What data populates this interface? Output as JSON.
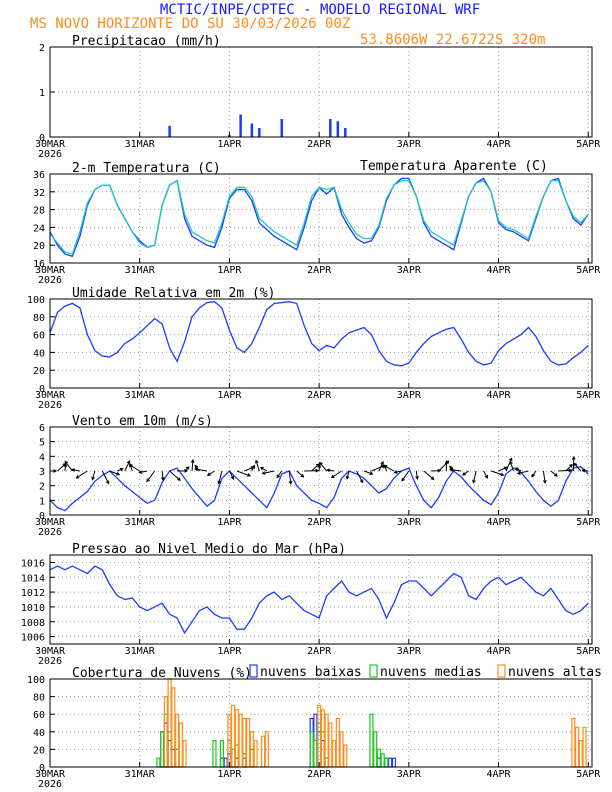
{
  "header": {
    "title": "MCTIC/INPE/CPTEC - MODELO REGIONAL WRF",
    "location": "MS NOVO HORIZONTE DO SU   30/03/2026 00Z",
    "coordinates": "53.8606W 22.6722S 320m"
  },
  "colors": {
    "title": "#1a1aff",
    "accent": "#ff8c1a",
    "line": "#1a3cff",
    "cyan": "#1ec8c8",
    "green": "#1ec81e",
    "orange": "#ff8c1a",
    "grid": "#999999"
  },
  "x_axis": {
    "day_labels": [
      "30MAR",
      "31MAR",
      "1APR",
      "2APR",
      "3APR",
      "4APR",
      "5APR"
    ],
    "year": "2026"
  },
  "chart_data": [
    {
      "type": "bar",
      "title": "Precipitacao (mm/h)",
      "ylim": [
        0,
        2
      ],
      "yticks": [
        0,
        1,
        2
      ],
      "x_unit": "hours since 30MAR 00Z",
      "series": [
        {
          "name": "precipitacao",
          "x": [
            32,
            48,
            51,
            54,
            56,
            62,
            75,
            77,
            79
          ],
          "values": [
            0.25,
            0.05,
            0.5,
            0.3,
            0.2,
            0.4,
            0.4,
            0.35,
            0.2
          ]
        }
      ]
    },
    {
      "type": "line",
      "title": "2-m Temperatura (C)",
      "legend": "Temperatura Aparente (C)",
      "ylim": [
        16,
        36
      ],
      "yticks": [
        16,
        20,
        24,
        28,
        32,
        36
      ],
      "x_unit": "hours since 30MAR 00Z",
      "series": [
        {
          "name": "Temperatura",
          "x": [
            0,
            2,
            4,
            6,
            8,
            10,
            12,
            14,
            16,
            18,
            20,
            22,
            24,
            26,
            28,
            30,
            32,
            34,
            36,
            38,
            40,
            42,
            44,
            46,
            48,
            50,
            52,
            54,
            56,
            58,
            60,
            62,
            64,
            66,
            68,
            70,
            72,
            74,
            76,
            78,
            80,
            82,
            84,
            86,
            88,
            90,
            92,
            94,
            96,
            98,
            100,
            102,
            104,
            106,
            108,
            110,
            112,
            114,
            116,
            118,
            120,
            122,
            124,
            126,
            128,
            130,
            132,
            134,
            136,
            138,
            140,
            142,
            144
          ],
          "values": [
            23,
            20,
            18,
            17.5,
            22,
            29,
            32.5,
            33.5,
            33.5,
            29,
            26,
            23,
            21,
            19.5,
            20,
            29,
            33.5,
            34.5,
            26,
            22,
            21,
            20,
            19.5,
            24,
            30.5,
            32.5,
            32.5,
            30,
            25,
            23.5,
            22,
            21,
            20,
            19,
            24,
            30,
            33,
            31.5,
            33,
            27,
            24,
            21.5,
            20.5,
            21,
            24,
            30,
            33.5,
            35,
            35,
            31,
            25,
            22,
            21,
            20,
            19,
            25,
            31,
            34,
            35,
            32,
            25,
            23.5,
            23,
            22,
            21,
            26,
            31,
            34.5,
            35,
            30,
            26,
            24.5,
            27
          ]
        },
        {
          "name": "Temperatura Aparente",
          "x": [
            0,
            2,
            4,
            6,
            8,
            10,
            12,
            14,
            16,
            18,
            20,
            22,
            24,
            26,
            28,
            30,
            32,
            34,
            36,
            38,
            40,
            42,
            44,
            46,
            48,
            50,
            52,
            54,
            56,
            58,
            60,
            62,
            64,
            66,
            68,
            70,
            72,
            74,
            76,
            78,
            80,
            82,
            84,
            86,
            88,
            90,
            92,
            94,
            96,
            98,
            100,
            102,
            104,
            106,
            108,
            110,
            112,
            114,
            116,
            118,
            120,
            122,
            124,
            126,
            128,
            130,
            132,
            134,
            136,
            138,
            140,
            142,
            144
          ],
          "values": [
            22.5,
            20.5,
            18.5,
            18,
            23,
            29.5,
            32.5,
            33.5,
            33.5,
            29,
            26,
            23,
            20.5,
            19.5,
            20,
            29,
            33.5,
            34.5,
            27,
            23,
            22,
            21,
            20.5,
            25,
            31,
            33,
            33,
            31,
            26,
            24.5,
            23,
            22,
            21,
            20,
            25,
            31,
            33,
            32.5,
            33,
            28,
            25,
            22.5,
            21.5,
            21.5,
            24.5,
            30.5,
            33.5,
            34.5,
            34.5,
            31,
            25.5,
            23,
            22,
            21,
            20,
            25.5,
            31,
            34,
            34.5,
            32,
            25.5,
            24,
            23.5,
            22.5,
            21.5,
            26.5,
            31,
            34.5,
            34.5,
            30,
            26.5,
            25,
            27
          ]
        }
      ]
    },
    {
      "type": "line",
      "title": "Umidade Relativa em 2m (%)",
      "ylim": [
        0,
        100
      ],
      "yticks": [
        0,
        20,
        40,
        60,
        80,
        100
      ],
      "x_unit": "hours since 30MAR 00Z",
      "series": [
        {
          "name": "umidade",
          "x": [
            0,
            2,
            4,
            6,
            8,
            10,
            12,
            14,
            16,
            18,
            20,
            22,
            24,
            26,
            28,
            30,
            32,
            34,
            36,
            38,
            40,
            42,
            44,
            46,
            48,
            50,
            52,
            54,
            56,
            58,
            60,
            62,
            64,
            66,
            68,
            70,
            72,
            74,
            76,
            78,
            80,
            82,
            84,
            86,
            88,
            90,
            92,
            94,
            96,
            98,
            100,
            102,
            104,
            106,
            108,
            110,
            112,
            114,
            116,
            118,
            120,
            122,
            124,
            126,
            128,
            130,
            132,
            134,
            136,
            138,
            140,
            142,
            144
          ],
          "values": [
            62,
            85,
            92,
            95,
            90,
            60,
            42,
            36,
            35,
            40,
            50,
            55,
            62,
            70,
            78,
            72,
            45,
            30,
            52,
            80,
            90,
            96,
            97,
            90,
            65,
            45,
            40,
            50,
            68,
            88,
            95,
            96,
            97,
            95,
            70,
            50,
            42,
            48,
            45,
            55,
            62,
            65,
            68,
            60,
            42,
            30,
            26,
            25,
            28,
            40,
            50,
            58,
            62,
            66,
            68,
            55,
            40,
            30,
            26,
            28,
            42,
            50,
            55,
            60,
            68,
            58,
            42,
            30,
            26,
            27,
            34,
            40,
            48
          ]
        }
      ]
    },
    {
      "type": "line",
      "title": "Vento em 10m (m/s)",
      "ylim": [
        0,
        6
      ],
      "yticks": [
        0,
        1,
        2,
        3,
        4,
        5,
        6
      ],
      "x_unit": "hours since 30MAR 00Z",
      "series": [
        {
          "name": "vento",
          "x": [
            0,
            2,
            4,
            6,
            8,
            10,
            12,
            14,
            16,
            18,
            20,
            22,
            24,
            26,
            28,
            30,
            32,
            34,
            36,
            38,
            40,
            42,
            44,
            46,
            48,
            50,
            52,
            54,
            56,
            58,
            60,
            62,
            64,
            66,
            68,
            70,
            72,
            74,
            76,
            78,
            80,
            82,
            84,
            86,
            88,
            90,
            92,
            94,
            96,
            98,
            100,
            102,
            104,
            106,
            108,
            110,
            112,
            114,
            116,
            118,
            120,
            122,
            124,
            126,
            128,
            130,
            132,
            134,
            136,
            138,
            140,
            142,
            144
          ],
          "values": [
            1,
            0.5,
            0.3,
            0.8,
            1.2,
            1.6,
            2.3,
            2.7,
            3,
            2.5,
            2,
            1.6,
            1.2,
            0.8,
            1,
            2.2,
            3,
            3.2,
            2.5,
            1.8,
            1.2,
            0.6,
            1,
            2.5,
            3,
            2.5,
            2,
            1.5,
            1,
            0.5,
            1.5,
            2.8,
            3,
            2,
            1.5,
            1,
            0.8,
            0.5,
            1.2,
            2.5,
            3,
            2.8,
            2.5,
            2,
            1.5,
            1.8,
            2.5,
            3,
            3.2,
            2,
            1,
            0.5,
            1.2,
            2.3,
            3,
            2.6,
            2,
            1.5,
            1,
            0.7,
            1.5,
            2.8,
            3.2,
            2.9,
            2.3,
            1.6,
            1,
            0.6,
            1,
            2.3,
            3.2,
            3.3,
            2.8
          ]
        }
      ]
    },
    {
      "type": "line",
      "title": "Pressao ao Nivel Medio do Mar (hPa)",
      "ylim": [
        1005,
        1017
      ],
      "yticks": [
        1006,
        1008,
        1010,
        1012,
        1014,
        1016
      ],
      "x_unit": "hours since 30MAR 00Z",
      "series": [
        {
          "name": "pressao",
          "x": [
            0,
            2,
            4,
            6,
            8,
            10,
            12,
            14,
            16,
            18,
            20,
            22,
            24,
            26,
            28,
            30,
            32,
            34,
            36,
            38,
            40,
            42,
            44,
            46,
            48,
            50,
            52,
            54,
            56,
            58,
            60,
            62,
            64,
            66,
            68,
            70,
            72,
            74,
            76,
            78,
            80,
            82,
            84,
            86,
            88,
            90,
            92,
            94,
            96,
            98,
            100,
            102,
            104,
            106,
            108,
            110,
            112,
            114,
            116,
            118,
            120,
            122,
            124,
            126,
            128,
            130,
            132,
            134,
            136,
            138,
            140,
            142,
            144
          ],
          "values": [
            1015,
            1015.5,
            1015,
            1015.5,
            1015,
            1014.5,
            1015.5,
            1015,
            1013,
            1011.5,
            1011,
            1011.2,
            1010,
            1009.5,
            1010,
            1010.5,
            1009,
            1008.5,
            1006.5,
            1008,
            1009.5,
            1010,
            1009,
            1008.5,
            1008.5,
            1007,
            1007,
            1008.5,
            1010.5,
            1011.5,
            1012,
            1011,
            1011.5,
            1010.5,
            1009.5,
            1009,
            1008.5,
            1011.5,
            1012.5,
            1013.5,
            1012,
            1011.5,
            1012,
            1012.5,
            1011,
            1008.5,
            1010.5,
            1013,
            1013.5,
            1013.5,
            1012.5,
            1011.5,
            1012.5,
            1013.5,
            1014.5,
            1014,
            1011.5,
            1011,
            1012.5,
            1013.5,
            1014,
            1013,
            1013.5,
            1014,
            1013,
            1012,
            1011.5,
            1012.5,
            1011,
            1009.5,
            1009,
            1009.5,
            1010.5
          ]
        }
      ]
    },
    {
      "type": "bar",
      "title": "Cobertura de Nuvens (%)",
      "legend": [
        "nuvens baixas",
        "nuvens medias",
        "nuvens altas"
      ],
      "ylim": [
        0,
        100
      ],
      "yticks": [
        0,
        20,
        40,
        60,
        80,
        100
      ],
      "x_unit": "hours since 30MAR 00Z",
      "series": [
        {
          "name": "nuvens baixas",
          "x": [
            30,
            31,
            32,
            33,
            46,
            47,
            48,
            49,
            50,
            52,
            70,
            71,
            72,
            73,
            88,
            90,
            91,
            92,
            144
          ],
          "values": [
            40,
            50,
            30,
            20,
            10,
            10,
            15,
            20,
            10,
            10,
            55,
            60,
            40,
            30,
            10,
            10,
            10,
            10,
            0
          ]
        },
        {
          "name": "nuvens medias",
          "x": [
            29,
            30,
            31,
            32,
            34,
            44,
            46,
            48,
            49,
            50,
            52,
            54,
            70,
            71,
            72,
            73,
            74,
            86,
            87,
            88,
            89,
            90
          ],
          "values": [
            10,
            40,
            60,
            40,
            20,
            30,
            30,
            30,
            20,
            25,
            15,
            20,
            40,
            30,
            50,
            40,
            10,
            60,
            40,
            20,
            15,
            10
          ]
        },
        {
          "name": "nuvens altas",
          "x": [
            31,
            32,
            33,
            34,
            35,
            36,
            48,
            49,
            50,
            51,
            52,
            53,
            54,
            55,
            57,
            58,
            72,
            73,
            74,
            75,
            76,
            77,
            78,
            79,
            140,
            141,
            142,
            143
          ],
          "values": [
            80,
            100,
            90,
            60,
            50,
            30,
            60,
            70,
            65,
            60,
            55,
            55,
            40,
            30,
            35,
            40,
            70,
            65,
            60,
            50,
            30,
            55,
            40,
            25,
            55,
            45,
            30,
            45
          ]
        }
      ]
    }
  ]
}
